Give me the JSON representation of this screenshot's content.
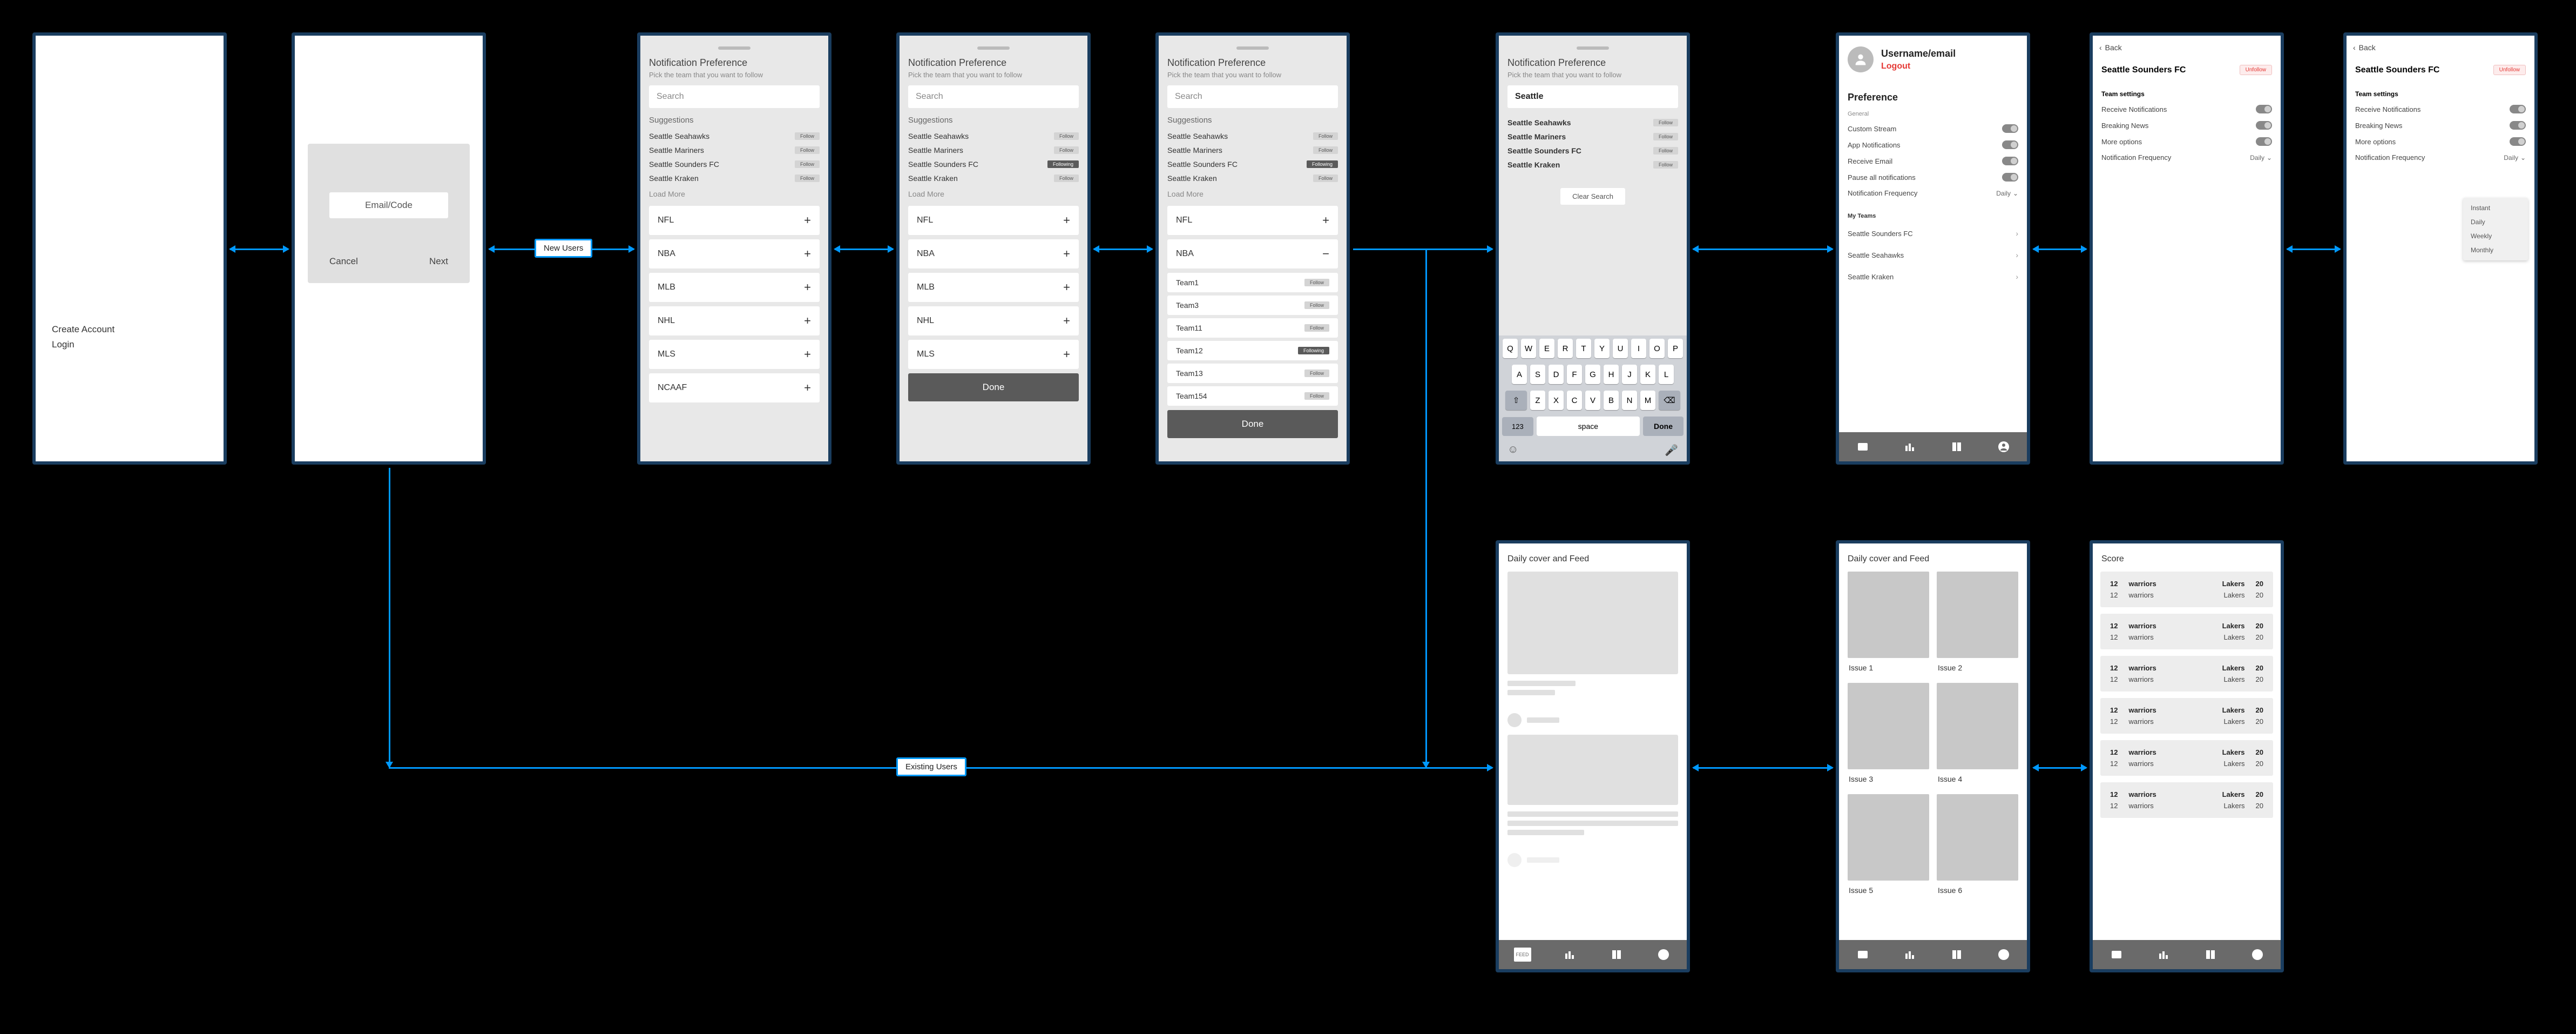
{
  "colors": {
    "frame": "#1a3d5f",
    "accent": "#0099ff",
    "bg": "#000000",
    "logout": "#e53935"
  },
  "labels": {
    "newUsers": "New Users",
    "existingUsers": "Existing Users"
  },
  "screen1": {
    "createAccount": "Create Account",
    "login": "Login"
  },
  "screen2": {
    "placeholder": "Email/Code",
    "cancel": "Cancel",
    "next": "Next"
  },
  "np": {
    "title": "Notification Preference",
    "subtitle": "Pick the team that you want to follow",
    "searchPlaceholder": "Search",
    "suggestLabel": "Suggestions",
    "loadMore": "Load More",
    "done": "Done",
    "suggestions": [
      {
        "team": "Seattle Seahawks",
        "state": "Follow"
      },
      {
        "team": "Seattle Mariners",
        "state": "Follow"
      },
      {
        "team": "Seattle Sounders FC",
        "state": "Follow"
      },
      {
        "team": "Seattle Kraken",
        "state": "Follow"
      }
    ],
    "suggestionsB": [
      {
        "team": "Seattle Seahawks",
        "state": "Follow"
      },
      {
        "team": "Seattle Mariners",
        "state": "Follow"
      },
      {
        "team": "Seattle Sounders FC",
        "state": "Following",
        "dark": true
      },
      {
        "team": "Seattle Kraken",
        "state": "Follow"
      }
    ],
    "leagues": [
      "NFL",
      "NBA",
      "MLB",
      "NHL",
      "MLS",
      "NCAAF"
    ],
    "leaguesShort": [
      "NFL",
      "NBA",
      "MLB",
      "NHL",
      "MLS"
    ],
    "nbaExpanded": "NBA",
    "nbaTeams": [
      {
        "team": "Team1",
        "state": "Follow"
      },
      {
        "team": "Team3",
        "state": "Follow"
      },
      {
        "team": "Team11",
        "state": "Follow"
      },
      {
        "team": "Team12",
        "state": "Following",
        "dark": true
      },
      {
        "team": "Team13",
        "state": "Follow"
      },
      {
        "team": "Team154",
        "state": "Follow"
      }
    ]
  },
  "search": {
    "query": "Seattle",
    "results": [
      {
        "team": "Seattle Seahawks",
        "state": "Follow"
      },
      {
        "team": "Seattle Mariners",
        "state": "Follow"
      },
      {
        "team": "Seattle Sounders FC",
        "state": "Follow"
      },
      {
        "team": "Seattle Kraken",
        "state": "Follow"
      }
    ],
    "clear": "Clear Search",
    "keys": {
      "r1": [
        "Q",
        "W",
        "E",
        "R",
        "T",
        "Y",
        "U",
        "I",
        "O",
        "P"
      ],
      "r2": [
        "A",
        "S",
        "D",
        "F",
        "G",
        "H",
        "J",
        "K",
        "L"
      ],
      "r3": [
        "Z",
        "X",
        "C",
        "V",
        "B",
        "N",
        "M"
      ],
      "num": "123",
      "space": "space",
      "done": "Done"
    }
  },
  "profile": {
    "username": "Username/email",
    "logout": "Logout",
    "prefTitle": "Preference",
    "general": "General",
    "settings": [
      {
        "label": "Custom Stream"
      },
      {
        "label": "App Notifications"
      },
      {
        "label": "Receive Email"
      },
      {
        "label": "Pause all notifications"
      }
    ],
    "freq": {
      "label": "Notification Frequency",
      "value": "Daily"
    },
    "myTeams": "My Teams",
    "teams": [
      "Seattle Sounders FC",
      "Seattle Seahawks",
      "Seattle Kraken"
    ]
  },
  "teamSettings": {
    "back": "Back",
    "team": "Seattle Sounders FC",
    "unfollow": "Unfollow",
    "section": "Team settings",
    "rows": [
      {
        "label": "Receive Notifications"
      },
      {
        "label": "Breaking News"
      },
      {
        "label": "More options"
      }
    ],
    "freq": {
      "label": "Notification Frequency",
      "value": "Daily"
    },
    "ddOptions": [
      "Instant",
      "Daily",
      "Weekly",
      "Monthly"
    ]
  },
  "feed": {
    "title": "Daily cover and Feed",
    "issues": [
      "Issue 1",
      "Issue 2",
      "Issue 3",
      "Issue 4",
      "Issue 5",
      "Issue 6"
    ]
  },
  "score": {
    "title": "Score",
    "games": [
      {
        "l": "12",
        "lt": "warriors",
        "rt": "Lakers",
        "r": "20"
      },
      {
        "l": "12",
        "lt": "warriors",
        "rt": "Lakers",
        "r": "20"
      },
      {
        "l": "12",
        "lt": "warriors",
        "rt": "Lakers",
        "r": "20"
      },
      {
        "l": "12",
        "lt": "warriors",
        "rt": "Lakers",
        "r": "20"
      },
      {
        "l": "12",
        "lt": "warriors",
        "rt": "Lakers",
        "r": "20"
      },
      {
        "l": "12",
        "lt": "warriors",
        "rt": "Lakers",
        "r": "20"
      }
    ]
  },
  "nav": [
    "feed",
    "scores",
    "library",
    "profile"
  ]
}
